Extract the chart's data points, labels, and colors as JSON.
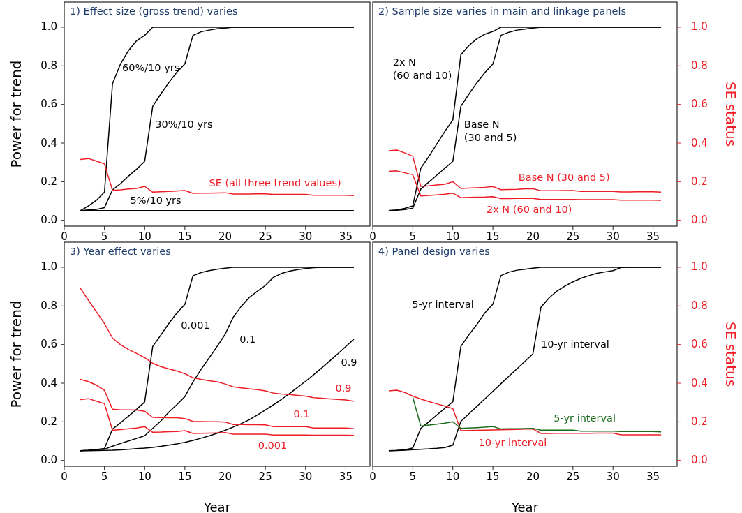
{
  "chart_data": [
    {
      "type": "line",
      "title": "1) Effect size (gross trend) varies",
      "ylabel": "Power for trend",
      "xlim": [
        0,
        38
      ],
      "xticks": [
        0,
        5,
        10,
        15,
        20,
        25,
        30,
        35
      ],
      "ylim": [
        -0.03,
        1.13
      ],
      "yticks": [
        {
          "value": 0,
          "label": "0.0"
        },
        {
          "value": 0.2,
          "label": "0.2"
        },
        {
          "value": 0.4,
          "label": "0.4"
        },
        {
          "value": 0.6,
          "label": "0.6"
        },
        {
          "value": 0.8,
          "label": "0.8"
        },
        {
          "value": 1,
          "label": "1.0"
        }
      ],
      "x": [
        2,
        3,
        4,
        5,
        6,
        7,
        8,
        9,
        10,
        11,
        12,
        13,
        14,
        15,
        16,
        17,
        18,
        19,
        20,
        21,
        22,
        23,
        24,
        25,
        26,
        27,
        28,
        29,
        30,
        31,
        32,
        33,
        34,
        35,
        36
      ],
      "series": [
        {
          "name": "60%/10 yrs",
          "color": "#000000",
          "values": [
            0.05,
            0.074,
            0.104,
            0.146,
            0.707,
            0.81,
            0.88,
            0.93,
            0.958,
            1,
            1,
            1,
            1,
            1,
            1,
            1,
            1,
            1,
            1,
            1,
            1,
            1,
            1,
            1,
            1,
            1,
            1,
            1,
            1,
            1,
            1,
            1,
            1,
            1,
            1
          ]
        },
        {
          "name": "30%/10 yrs",
          "color": "#000000",
          "values": [
            0.05,
            0.054,
            0.057,
            0.066,
            0.158,
            0.19,
            0.23,
            0.265,
            0.305,
            0.59,
            0.654,
            0.713,
            0.767,
            0.81,
            0.958,
            0.976,
            0.985,
            0.992,
            0.995,
            1,
            1,
            1,
            1,
            1,
            1,
            1,
            1,
            1,
            1,
            1,
            1,
            1,
            1,
            1,
            1
          ]
        },
        {
          "name": "5%/10 yrs",
          "color": "#000000",
          "values": [
            0.05,
            0.05,
            0.05,
            0.05,
            0.05,
            0.05,
            0.05,
            0.05,
            0.05,
            0.05,
            0.05,
            0.05,
            0.05,
            0.05,
            0.05,
            0.05,
            0.05,
            0.05,
            0.05,
            0.05,
            0.05,
            0.05,
            0.05,
            0.05,
            0.05,
            0.05,
            0.05,
            0.05,
            0.05,
            0.05,
            0.05,
            0.05,
            0.05,
            0.05,
            0.05
          ]
        },
        {
          "name": "SE (all three trend values)",
          "color": "#ee1c25",
          "values": [
            0.315,
            0.32,
            0.307,
            0.292,
            0.155,
            0.158,
            0.162,
            0.165,
            0.176,
            0.146,
            0.148,
            0.15,
            0.152,
            0.154,
            0.14,
            0.141,
            0.141,
            0.142,
            0.143,
            0.136,
            0.136,
            0.136,
            0.137,
            0.137,
            0.134,
            0.134,
            0.134,
            0.134,
            0.134,
            0.13,
            0.13,
            0.13,
            0.13,
            0.13,
            0.128
          ]
        }
      ]
    },
    {
      "type": "line",
      "title": "2) Sample size varies in main and linkage panels",
      "y2label": "SE status",
      "xlim": [
        0,
        38
      ],
      "xticks": [
        0,
        5,
        10,
        15,
        20,
        25,
        30,
        35
      ],
      "y2lim": [
        -0.03,
        1.13
      ],
      "y2ticks": [
        {
          "value": 0,
          "label": "0.0"
        },
        {
          "value": 0.2,
          "label": "0.2"
        },
        {
          "value": 0.4,
          "label": "0.4"
        },
        {
          "value": 0.6,
          "label": "0.6"
        },
        {
          "value": 0.8,
          "label": "0.8"
        },
        {
          "value": 1,
          "label": "1.0"
        }
      ],
      "x": [
        2,
        3,
        4,
        5,
        6,
        7,
        8,
        9,
        10,
        11,
        12,
        13,
        14,
        15,
        16,
        17,
        18,
        19,
        20,
        21,
        22,
        23,
        24,
        25,
        26,
        27,
        28,
        29,
        30,
        31,
        32,
        33,
        34,
        35,
        36
      ],
      "series": [
        {
          "name": "2x N\n(60 and 10)",
          "color": "#000000",
          "axis": "y2",
          "values": [
            0.05,
            0.054,
            0.062,
            0.075,
            0.27,
            0.33,
            0.395,
            0.46,
            0.52,
            0.857,
            0.905,
            0.94,
            0.964,
            0.978,
            1,
            1,
            1,
            1,
            1,
            1,
            1,
            1,
            1,
            1,
            1,
            1,
            1,
            1,
            1,
            1,
            1,
            1,
            1,
            1,
            1
          ]
        },
        {
          "name": "Base N\n(30 and 5)",
          "color": "#000000",
          "axis": "y2",
          "values": [
            0.05,
            0.052,
            0.056,
            0.063,
            0.162,
            0.198,
            0.234,
            0.27,
            0.305,
            0.59,
            0.653,
            0.712,
            0.765,
            0.809,
            0.958,
            0.974,
            0.985,
            0.99,
            0.995,
            1,
            1,
            1,
            1,
            1,
            1,
            1,
            1,
            1,
            1,
            1,
            1,
            1,
            1,
            1,
            1
          ]
        },
        {
          "name": "Base N (30 and 5)",
          "color": "#ee1c25",
          "axis": "y2",
          "values": [
            0.36,
            0.364,
            0.349,
            0.332,
            0.176,
            0.179,
            0.183,
            0.187,
            0.2,
            0.165,
            0.167,
            0.169,
            0.171,
            0.175,
            0.159,
            0.16,
            0.161,
            0.163,
            0.164,
            0.153,
            0.153,
            0.153,
            0.154,
            0.154,
            0.15,
            0.15,
            0.15,
            0.15,
            0.15,
            0.147,
            0.147,
            0.148,
            0.148,
            0.148,
            0.146
          ]
        },
        {
          "name": "2x N (60 and 10)",
          "color": "#ee1c25",
          "axis": "y2",
          "values": [
            0.254,
            0.256,
            0.246,
            0.236,
            0.126,
            0.129,
            0.132,
            0.135,
            0.141,
            0.117,
            0.119,
            0.12,
            0.121,
            0.123,
            0.113,
            0.113,
            0.114,
            0.114,
            0.114,
            0.108,
            0.108,
            0.108,
            0.108,
            0.108,
            0.107,
            0.107,
            0.107,
            0.107,
            0.107,
            0.105,
            0.105,
            0.105,
            0.105,
            0.105,
            0.104
          ]
        }
      ]
    },
    {
      "type": "line",
      "title": "3) Year effect varies",
      "xlabel": "Year",
      "ylabel": "Power for trend",
      "xlim": [
        0,
        38
      ],
      "xticks": [
        0,
        5,
        10,
        15,
        20,
        25,
        30,
        35
      ],
      "ylim": [
        -0.03,
        1.13
      ],
      "yticks": [
        {
          "value": 0,
          "label": "0.0"
        },
        {
          "value": 0.2,
          "label": "0.2"
        },
        {
          "value": 0.4,
          "label": "0.4"
        },
        {
          "value": 0.6,
          "label": "0.6"
        },
        {
          "value": 0.8,
          "label": "0.8"
        },
        {
          "value": 1,
          "label": "1.0"
        }
      ],
      "x": [
        2,
        3,
        4,
        5,
        6,
        7,
        8,
        9,
        10,
        11,
        12,
        13,
        14,
        15,
        16,
        17,
        18,
        19,
        20,
        21,
        22,
        23,
        24,
        25,
        26,
        27,
        28,
        29,
        30,
        31,
        32,
        33,
        34,
        35,
        36
      ],
      "series": [
        {
          "name": "0.001",
          "color": "#000000",
          "values": [
            0.05,
            0.053,
            0.057,
            0.062,
            0.162,
            0.195,
            0.23,
            0.265,
            0.303,
            0.59,
            0.649,
            0.709,
            0.763,
            0.808,
            0.956,
            0.973,
            0.983,
            0.99,
            0.995,
            1,
            1,
            1,
            1,
            1,
            1,
            1,
            1,
            1,
            1,
            1,
            1,
            1,
            1,
            1,
            1
          ]
        },
        {
          "name": "0.1",
          "color": "#000000",
          "values": [
            0.05,
            0.052,
            0.056,
            0.058,
            0.074,
            0.088,
            0.101,
            0.114,
            0.128,
            0.166,
            0.204,
            0.25,
            0.289,
            0.331,
            0.406,
            0.471,
            0.53,
            0.59,
            0.653,
            0.741,
            0.798,
            0.844,
            0.876,
            0.906,
            0.948,
            0.968,
            0.98,
            0.988,
            0.994,
            0.998,
            1,
            1,
            1,
            1,
            1
          ]
        },
        {
          "name": "0.9",
          "color": "#000000",
          "values": [
            0.05,
            0.05,
            0.051,
            0.052,
            0.053,
            0.055,
            0.058,
            0.061,
            0.064,
            0.068,
            0.073,
            0.079,
            0.086,
            0.094,
            0.104,
            0.115,
            0.127,
            0.141,
            0.156,
            0.173,
            0.191,
            0.211,
            0.235,
            0.261,
            0.288,
            0.316,
            0.346,
            0.378,
            0.41,
            0.444,
            0.479,
            0.515,
            0.552,
            0.59,
            0.628
          ]
        },
        {
          "name": "0.9",
          "color": "#ee1c25",
          "values": [
            0.892,
            0.83,
            0.769,
            0.709,
            0.634,
            0.599,
            0.574,
            0.554,
            0.532,
            0.503,
            0.486,
            0.474,
            0.463,
            0.449,
            0.428,
            0.42,
            0.413,
            0.407,
            0.396,
            0.381,
            0.376,
            0.371,
            0.367,
            0.36,
            0.349,
            0.344,
            0.341,
            0.337,
            0.333,
            0.325,
            0.322,
            0.319,
            0.316,
            0.313,
            0.306
          ]
        },
        {
          "name": "0.1",
          "color": "#ee1c25",
          "values": [
            0.42,
            0.408,
            0.39,
            0.363,
            0.265,
            0.262,
            0.262,
            0.261,
            0.255,
            0.223,
            0.222,
            0.221,
            0.221,
            0.217,
            0.202,
            0.201,
            0.2,
            0.2,
            0.199,
            0.186,
            0.186,
            0.185,
            0.185,
            0.184,
            0.175,
            0.175,
            0.175,
            0.175,
            0.175,
            0.168,
            0.168,
            0.168,
            0.168,
            0.168,
            0.164
          ]
        },
        {
          "name": "0.001",
          "color": "#ee1c25",
          "values": [
            0.315,
            0.32,
            0.307,
            0.294,
            0.156,
            0.16,
            0.164,
            0.168,
            0.175,
            0.146,
            0.147,
            0.149,
            0.15,
            0.154,
            0.14,
            0.141,
            0.142,
            0.143,
            0.144,
            0.136,
            0.136,
            0.136,
            0.136,
            0.136,
            0.132,
            0.132,
            0.132,
            0.132,
            0.132,
            0.131,
            0.131,
            0.131,
            0.131,
            0.131,
            0.13
          ]
        }
      ]
    },
    {
      "type": "line",
      "title": "4) Panel design varies",
      "xlabel": "Year",
      "y2label": "SE status",
      "xlim": [
        0,
        38
      ],
      "xticks": [
        0,
        5,
        10,
        15,
        20,
        25,
        30,
        35
      ],
      "y2lim": [
        -0.03,
        1.13
      ],
      "y2ticks": [
        {
          "value": 0,
          "label": "0.0"
        },
        {
          "value": 0.2,
          "label": "0.2"
        },
        {
          "value": 0.4,
          "label": "0.4"
        },
        {
          "value": 0.6,
          "label": "0.6"
        },
        {
          "value": 0.8,
          "label": "0.8"
        },
        {
          "value": 1,
          "label": "1.0"
        }
      ],
      "x": [
        2,
        3,
        4,
        5,
        6,
        7,
        8,
        9,
        10,
        11,
        12,
        13,
        14,
        15,
        16,
        17,
        18,
        19,
        20,
        21,
        22,
        23,
        24,
        25,
        26,
        27,
        28,
        29,
        30,
        31,
        32,
        33,
        34,
        35,
        36
      ],
      "series": [
        {
          "name": "5-yr interval",
          "color": "#000000",
          "axis": "y2",
          "values": [
            0.05,
            0.052,
            0.055,
            0.065,
            0.166,
            0.2,
            0.235,
            0.27,
            0.304,
            0.59,
            0.65,
            0.704,
            0.764,
            0.809,
            0.957,
            0.975,
            0.985,
            0.99,
            0.995,
            1,
            1,
            1,
            1,
            1,
            1,
            1,
            1,
            1,
            1,
            1,
            1,
            1,
            1,
            1,
            1
          ]
        },
        {
          "name": "10-yr interval",
          "color": "#000000",
          "axis": "y2",
          "values": [
            0.05,
            0.051,
            0.053,
            0.056,
            0.058,
            0.06,
            0.063,
            0.067,
            0.079,
            0.202,
            0.241,
            0.28,
            0.319,
            0.358,
            0.397,
            0.436,
            0.474,
            0.513,
            0.552,
            0.793,
            0.841,
            0.877,
            0.903,
            0.925,
            0.943,
            0.957,
            0.969,
            0.976,
            0.983,
            0.999,
            1,
            1,
            1,
            1,
            1
          ]
        },
        {
          "name": "10-yr interval",
          "color": "#ee1c25",
          "axis": "y2",
          "values": [
            0.36,
            0.364,
            0.352,
            0.333,
            0.318,
            0.305,
            0.293,
            0.282,
            0.268,
            0.154,
            0.155,
            0.156,
            0.157,
            0.158,
            0.159,
            0.16,
            0.161,
            0.162,
            0.163,
            0.14,
            0.14,
            0.141,
            0.141,
            0.141,
            0.141,
            0.141,
            0.142,
            0.142,
            0.142,
            0.133,
            0.133,
            0.133,
            0.133,
            0.133,
            0.133
          ]
        },
        {
          "name": "5-yr interval",
          "color": "#1a6b1a",
          "axis": "y2",
          "x": [
            5,
            6,
            7,
            8,
            9,
            10,
            11,
            12,
            13,
            14,
            15,
            16,
            17,
            18,
            19,
            20,
            21,
            22,
            23,
            24,
            25,
            26,
            27,
            28,
            29,
            30,
            31,
            32,
            33,
            34,
            35,
            36
          ],
          "values": [
            0.327,
            0.178,
            0.183,
            0.188,
            0.193,
            0.2,
            0.166,
            0.168,
            0.17,
            0.172,
            0.176,
            0.163,
            0.164,
            0.164,
            0.165,
            0.166,
            0.157,
            0.157,
            0.157,
            0.157,
            0.157,
            0.152,
            0.152,
            0.152,
            0.152,
            0.152,
            0.15,
            0.15,
            0.15,
            0.15,
            0.15,
            0.148
          ]
        }
      ]
    }
  ]
}
